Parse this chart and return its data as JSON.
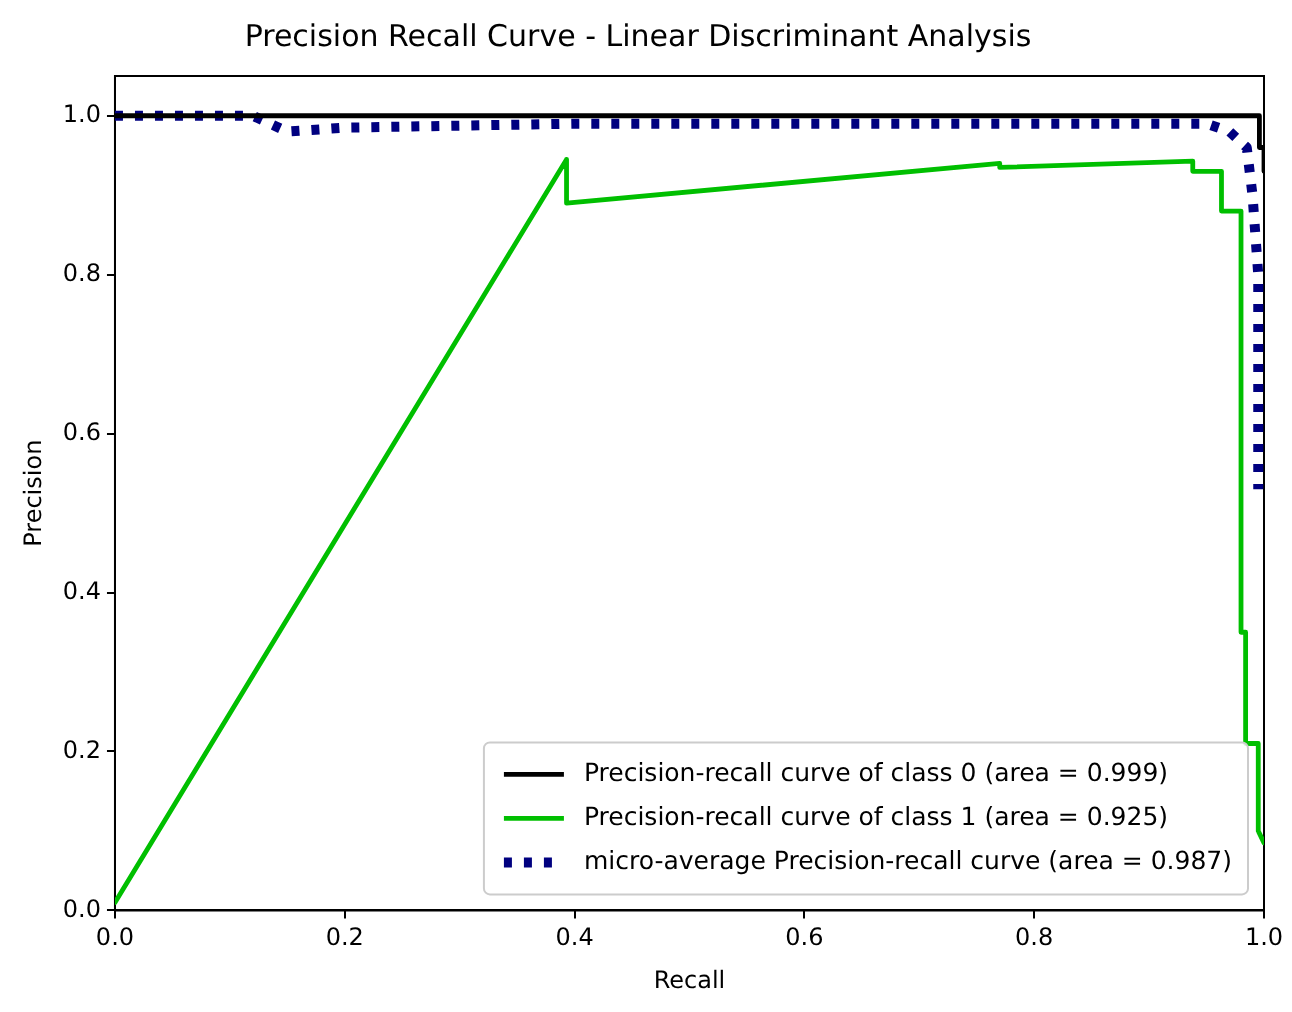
{
  "chart_data": {
    "type": "line",
    "title": "Precision Recall Curve - Linear Discriminant Analysis",
    "xlabel": "Recall",
    "ylabel": "Precision",
    "xlim": [
      0,
      1
    ],
    "ylim": [
      0,
      1.05
    ],
    "xticks": [
      {
        "value": 0,
        "label": "0.0"
      },
      0.2,
      0.4,
      0.6,
      0.8,
      {
        "value": 1,
        "label": "1.0"
      }
    ],
    "yticks": [
      {
        "value": 0,
        "label": "0.0"
      },
      0.2,
      0.4,
      0.6,
      0.8,
      {
        "value": 1,
        "label": "1.0"
      }
    ],
    "legend": "bottom right",
    "marker": "none",
    "grid": false,
    "series": [
      {
        "name": "Precision-recall curve of class 0 (area = 0.999)",
        "color": "#000000",
        "line_style": "solid",
        "x": [
          0,
          0.996,
          0.996,
          1.0,
          1.0
        ],
        "values": [
          1.0,
          1.0,
          0.96,
          0.96,
          0.93
        ]
      },
      {
        "name": "Precision-recall curve of class 1 (area = 0.925)",
        "color": "#00bf00",
        "line_style": "solid",
        "x": [
          0,
          0.393,
          0.393,
          0.77,
          0.77,
          0.938,
          0.938,
          0.963,
          0.963,
          0.98,
          0.98,
          0.984,
          0.984,
          0.995,
          0.995,
          1.0
        ],
        "values": [
          0.01,
          0.945,
          0.89,
          0.94,
          0.935,
          0.943,
          0.93,
          0.93,
          0.88,
          0.88,
          0.35,
          0.35,
          0.21,
          0.21,
          0.1,
          0.085
        ]
      },
      {
        "name": "micro-average Precision-recall curve (area = 0.987)",
        "color": "#000080",
        "line_style": "dotted",
        "x": [
          0,
          0.12,
          0.15,
          0.2,
          0.4,
          0.95,
          0.97,
          0.985,
          0.99,
          0.995,
          0.995
        ],
        "values": [
          1.0,
          1.0,
          0.98,
          0.985,
          0.99,
          0.99,
          0.98,
          0.96,
          0.9,
          0.8,
          0.53
        ]
      }
    ]
  }
}
